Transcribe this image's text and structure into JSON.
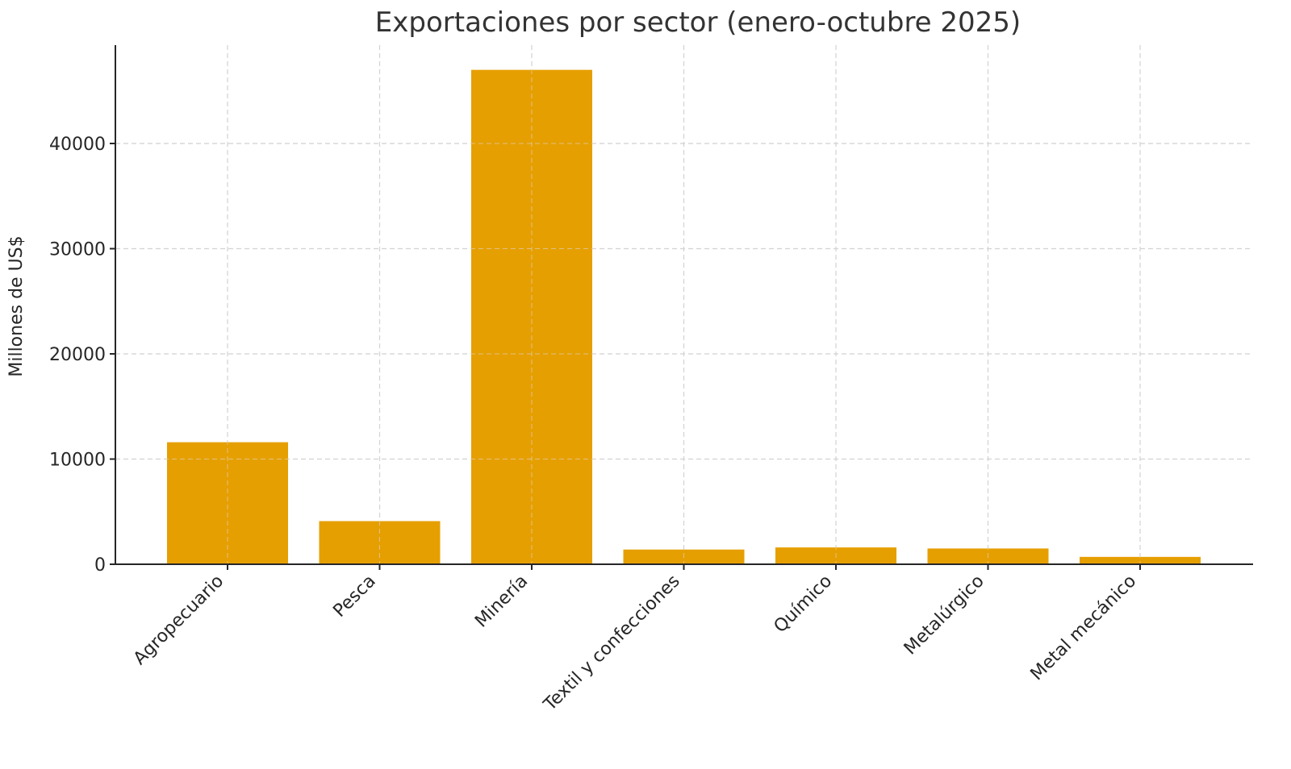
{
  "chart_data": {
    "type": "bar",
    "title": "Exportaciones por sector (enero-octubre 2025)",
    "xlabel": "",
    "ylabel": "Millones de US$",
    "categories": [
      "Agropecuario",
      "Pesca",
      "Minería",
      "Textil y confecciones",
      "Químico",
      "Metalúrgico",
      "Metal mecánico"
    ],
    "values": [
      11600,
      4100,
      47000,
      1400,
      1600,
      1500,
      700
    ],
    "ylim": [
      0,
      49500
    ],
    "yticks": [
      0,
      10000,
      20000,
      30000,
      40000
    ],
    "grid": true,
    "legend": null,
    "bar_color": "#E69F00",
    "xtick_rotation": -45
  }
}
